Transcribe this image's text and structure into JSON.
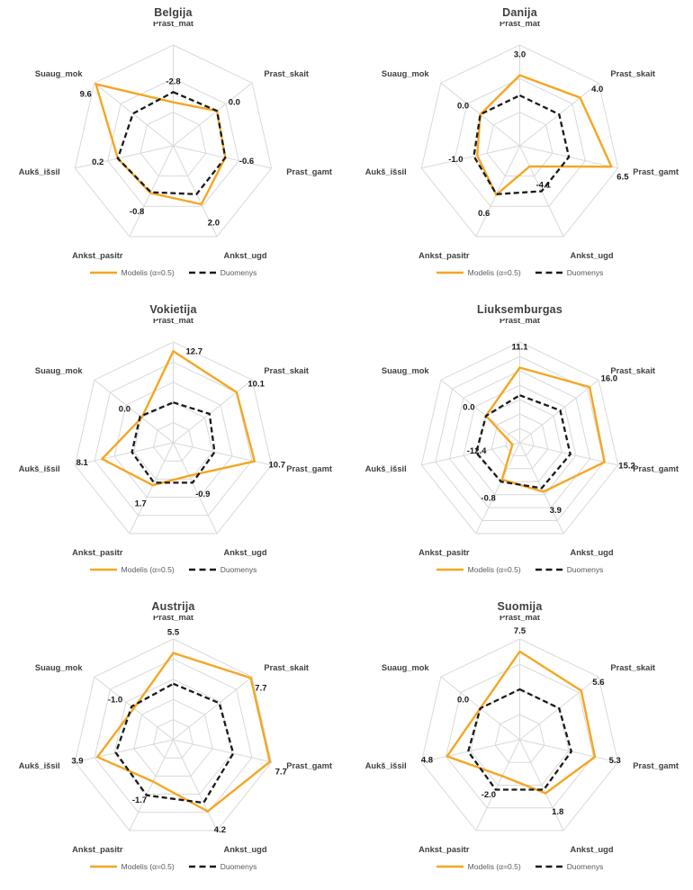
{
  "colors": {
    "model": "#F5A623",
    "duomenys": "#1A1A1A",
    "grid": "#D9D9D9",
    "title": "#3F3F3F",
    "axis_label": "#404040",
    "value_label": "#1A1A1A",
    "legend_text": "#595959"
  },
  "chart_data": [
    {
      "type": "radar",
      "title": "Belgija",
      "categories": [
        "Prast_mat",
        "Prast_skait",
        "Prast_gamt",
        "Ankst_ugd",
        "Ankst_pasitr",
        "Aukš_išsil",
        "Suaug_mok"
      ],
      "axis": {
        "min": -12.5,
        "max": 10,
        "rings": 3
      },
      "grid": true,
      "legend_position": "bottom",
      "series": [
        {
          "name": "Modelis (α=0.5)",
          "style": "solid",
          "values": [
            -2.8,
            0.0,
            -0.6,
            2.0,
            -0.8,
            0.2,
            9.6
          ],
          "value_labels": [
            "-2.8",
            "0.0",
            "-0.6",
            "2.0",
            "-0.8",
            "0.2",
            "9.6"
          ]
        },
        {
          "name": "Duomenys",
          "style": "dashed",
          "values": [
            -0.5,
            0.0,
            -0.6,
            -0.5,
            -1.0,
            0.2,
            -1.0
          ]
        }
      ]
    },
    {
      "type": "radar",
      "title": "Danija",
      "categories": [
        "Prast_mat",
        "Prast_skait",
        "Prast_gamt",
        "Ankst_ugd",
        "Ankst_pasitr",
        "Aukš_išsil",
        "Suaug_mok"
      ],
      "axis": {
        "min": -7.5,
        "max": 7.5,
        "rings": 3
      },
      "grid": true,
      "legend_position": "bottom",
      "series": [
        {
          "name": "Modelis (α=0.5)",
          "style": "solid",
          "values": [
            3.0,
            4.0,
            6.5,
            -4.1,
            0.6,
            -1.0,
            0.0
          ],
          "value_labels": [
            "3.0",
            "4.0",
            "6.5",
            "-4.1",
            "0.6",
            "-1.0",
            "0.0"
          ]
        },
        {
          "name": "Duomenys",
          "style": "dashed",
          "values": [
            0.0,
            0.0,
            0.0,
            0.0,
            0.5,
            -0.5,
            0.0
          ]
        }
      ]
    },
    {
      "type": "radar",
      "title": "Vokietija",
      "categories": [
        "Prast_mat",
        "Prast_skait",
        "Prast_gamt",
        "Ankst_ugd",
        "Ankst_pasitr",
        "Aukš_išsil",
        "Suaug_mok"
      ],
      "axis": {
        "min": -10,
        "max": 15,
        "rings": 5
      },
      "grid": true,
      "legend_position": "bottom",
      "series": [
        {
          "name": "Modelis (α=0.5)",
          "style": "solid",
          "values": [
            12.7,
            10.1,
            10.7,
            -0.9,
            1.7,
            8.1,
            0.0
          ],
          "value_labels": [
            "12.7",
            "10.1",
            "10.7",
            "-0.9",
            "1.7",
            "8.1",
            "0.0"
          ]
        },
        {
          "name": "Duomenys",
          "style": "dashed",
          "values": [
            0.0,
            1.5,
            0.5,
            1.0,
            1.0,
            0.5,
            0.5
          ]
        }
      ]
    },
    {
      "type": "radar",
      "title": "Liuksemburgas",
      "categories": [
        "Prast_mat",
        "Prast_skait",
        "Prast_gamt",
        "Ankst_ugd",
        "Ankst_pasitr",
        "Aukš_išsil",
        "Suaug_mok"
      ],
      "axis": {
        "min": -15,
        "max": 20,
        "rings": 7
      },
      "grid": true,
      "legend_position": "bottom",
      "series": [
        {
          "name": "Modelis (α=0.5)",
          "style": "solid",
          "values": [
            11.1,
            16.0,
            15.2,
            3.9,
            -0.8,
            -12.4,
            0.0
          ],
          "value_labels": [
            "11.1",
            "16.0",
            "15.2",
            "3.9",
            "-0.8",
            "-12.4",
            "0.0"
          ]
        },
        {
          "name": "Duomenys",
          "style": "dashed",
          "values": [
            1.5,
            3.0,
            3.0,
            2.5,
            0.0,
            0.5,
            0.0
          ]
        }
      ]
    },
    {
      "type": "radar",
      "title": "Austrija",
      "categories": [
        "Prast_mat",
        "Prast_skait",
        "Prast_gamt",
        "Ankst_ugd",
        "Ankst_pasitr",
        "Aukš_išsil",
        "Suaug_mok"
      ],
      "axis": {
        "min": -10,
        "max": 8,
        "rings": 5
      },
      "grid": true,
      "legend_position": "bottom",
      "series": [
        {
          "name": "Modelis (α=0.5)",
          "style": "solid",
          "values": [
            5.5,
            7.7,
            7.7,
            4.2,
            -1.7,
            3.9,
            -1.0
          ],
          "value_labels": [
            "5.5",
            "7.7",
            "7.7",
            "4.2",
            "-1.7",
            "3.9",
            "-1.0"
          ]
        },
        {
          "name": "Duomenys",
          "style": "dashed",
          "values": [
            0.0,
            0.5,
            1.0,
            2.5,
            1.0,
            0.5,
            -0.5
          ]
        }
      ]
    },
    {
      "type": "radar",
      "title": "Suomija",
      "categories": [
        "Prast_mat",
        "Prast_skait",
        "Prast_gamt",
        "Ankst_ugd",
        "Ankst_pasitr",
        "Aukš_išsil",
        "Suaug_mok"
      ],
      "axis": {
        "min": -10,
        "max": 10,
        "rings": 4
      },
      "grid": true,
      "legend_position": "bottom",
      "series": [
        {
          "name": "Modelis (α=0.5)",
          "style": "solid",
          "values": [
            7.5,
            5.6,
            5.3,
            1.8,
            -2.0,
            4.8,
            0.0
          ],
          "value_labels": [
            "7.5",
            "5.6",
            "5.3",
            "1.8",
            "-2.0",
            "4.8",
            "0.0"
          ]
        },
        {
          "name": "Duomenys",
          "style": "dashed",
          "values": [
            0.0,
            0.0,
            0.5,
            1.0,
            1.0,
            0.5,
            0.0
          ]
        }
      ]
    }
  ]
}
